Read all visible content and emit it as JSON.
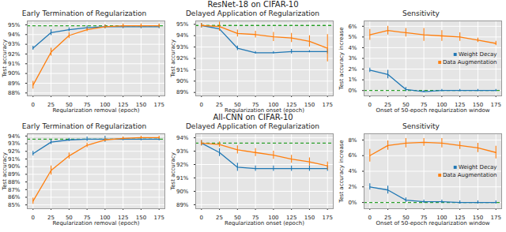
{
  "row_titles": [
    "ResNet-18 on CIFAR-10",
    "All-CNN on CIFAR-10"
  ],
  "chart_data": [
    {
      "type": "line",
      "title": "Early Termination of Regularization",
      "xlabel": "Regularization removal (epoch)",
      "ylabel": "Test accuracy",
      "x": [
        0,
        25,
        50,
        75,
        100,
        125,
        150,
        175
      ],
      "xlim": [
        -8,
        183
      ],
      "xticks": [
        0,
        25,
        50,
        75,
        100,
        125,
        150,
        175
      ],
      "ylim": [
        87.7,
        95.4
      ],
      "yticks": [
        {
          "value": 88,
          "label": "88%"
        },
        {
          "value": 89,
          "label": "89%"
        },
        {
          "value": 90,
          "label": "90%"
        },
        {
          "value": 91,
          "label": "91%"
        },
        {
          "value": 92,
          "label": "92%"
        },
        {
          "value": 93,
          "label": "93%"
        },
        {
          "value": 94,
          "label": "94%"
        },
        {
          "value": 95,
          "label": "95%"
        }
      ],
      "grid": true,
      "reference": {
        "value": 94.9,
        "color": "#2ca02c",
        "line_style": "dashed"
      },
      "series": [
        {
          "name": "Weight Decay",
          "color": "#1f77b4",
          "values": [
            92.6,
            94.2,
            94.5,
            94.7,
            94.8,
            94.8,
            94.8,
            94.8
          ],
          "errors": [
            0.2,
            0.3,
            0.2,
            0.2,
            0.2,
            0.2,
            0.2,
            0.2
          ]
        },
        {
          "name": "Data Augmentation",
          "color": "#ff7f0e",
          "values": [
            88.8,
            92.2,
            93.9,
            94.5,
            94.8,
            94.9,
            94.9,
            94.9
          ],
          "errors": [
            0.4,
            0.4,
            0.3,
            0.2,
            0.2,
            0.2,
            0.2,
            0.2
          ]
        }
      ]
    },
    {
      "type": "line",
      "title": "Delayed Application of Regularization",
      "xlabel": "Regularization onset (epoch)",
      "ylabel": "Test accuracy",
      "x": [
        0,
        25,
        50,
        75,
        100,
        125,
        150,
        175
      ],
      "xlim": [
        -8,
        183
      ],
      "xticks": [
        0,
        25,
        50,
        75,
        100,
        125,
        150,
        175
      ],
      "ylim": [
        88.7,
        95.3
      ],
      "yticks": [
        {
          "value": 89,
          "label": "89%"
        },
        {
          "value": 90,
          "label": "90%"
        },
        {
          "value": 91,
          "label": "91%"
        },
        {
          "value": 92,
          "label": "92%"
        },
        {
          "value": 93,
          "label": "93%"
        },
        {
          "value": 94,
          "label": "94%"
        },
        {
          "value": 95,
          "label": "95%"
        }
      ],
      "grid": true,
      "reference": {
        "value": 94.9,
        "color": "#2ca02c",
        "line_style": "dashed"
      },
      "series": [
        {
          "name": "Weight Decay",
          "color": "#1f77b4",
          "values": [
            94.9,
            94.6,
            92.9,
            92.5,
            92.5,
            92.6,
            92.6,
            92.6
          ],
          "errors": [
            0.2,
            0.2,
            0.2,
            0.1,
            0.1,
            0.2,
            0.1,
            0.2
          ]
        },
        {
          "name": "Data Augmentation",
          "color": "#ff7f0e",
          "values": [
            94.9,
            94.8,
            94.2,
            94.1,
            93.9,
            93.8,
            93.5,
            92.9
          ],
          "errors": [
            0.2,
            0.4,
            0.3,
            0.3,
            0.4,
            0.4,
            0.5,
            1.2
          ]
        }
      ]
    },
    {
      "type": "line",
      "title": "Sensitivity",
      "xlabel": "Onset of 50-epoch regularization window",
      "ylabel": "Test accuracy increase",
      "x": [
        0,
        25,
        50,
        75,
        100,
        125,
        150,
        175
      ],
      "xlim": [
        -8,
        183
      ],
      "xticks": [
        0,
        25,
        50,
        75,
        100,
        125,
        150,
        175
      ],
      "ylim": [
        -0.5,
        6.5
      ],
      "yticks": [
        {
          "value": 0,
          "label": "0%"
        },
        {
          "value": 1,
          "label": "1%"
        },
        {
          "value": 2,
          "label": "2%"
        },
        {
          "value": 3,
          "label": "3%"
        },
        {
          "value": 4,
          "label": "4%"
        },
        {
          "value": 5,
          "label": "5%"
        },
        {
          "value": 6,
          "label": "6%"
        }
      ],
      "grid": true,
      "legend": "right",
      "reference": {
        "value": 0,
        "color": "#2ca02c",
        "line_style": "dashed"
      },
      "series": [
        {
          "name": "Weight Decay",
          "color": "#1f77b4",
          "values": [
            1.9,
            1.5,
            0.1,
            -0.1,
            0.0,
            0.0,
            0.0,
            0.0
          ],
          "errors": [
            0.2,
            0.4,
            0.2,
            0.1,
            0.1,
            0.1,
            0.1,
            0.1
          ]
        },
        {
          "name": "Data Augmentation",
          "color": "#ff7f0e",
          "values": [
            5.2,
            5.6,
            5.4,
            5.2,
            5.1,
            5.0,
            4.7,
            4.4
          ],
          "errors": [
            0.5,
            0.4,
            0.4,
            0.6,
            0.5,
            0.4,
            0.2,
            0.2
          ]
        }
      ]
    },
    {
      "type": "line",
      "title": "Early Termination of Regularization",
      "xlabel": "Regularization removal (epoch)",
      "ylabel": "Test accuracy",
      "x": [
        0,
        25,
        50,
        75,
        100,
        125,
        150,
        175
      ],
      "xlim": [
        -8,
        183
      ],
      "xticks": [
        0,
        25,
        50,
        75,
        100,
        125,
        150,
        175
      ],
      "ylim": [
        84.5,
        94.3
      ],
      "yticks": [
        {
          "value": 85,
          "label": "85%"
        },
        {
          "value": 86,
          "label": "86%"
        },
        {
          "value": 87,
          "label": "87%"
        },
        {
          "value": 88,
          "label": "88%"
        },
        {
          "value": 89,
          "label": "89%"
        },
        {
          "value": 90,
          "label": "90%"
        },
        {
          "value": 91,
          "label": "91%"
        },
        {
          "value": 92,
          "label": "92%"
        },
        {
          "value": 93,
          "label": "93%"
        },
        {
          "value": 94,
          "label": "94%"
        }
      ],
      "grid": true,
      "reference": {
        "value": 93.6,
        "color": "#2ca02c",
        "line_style": "dashed"
      },
      "series": [
        {
          "name": "Weight Decay",
          "color": "#1f77b4",
          "values": [
            91.7,
            93.2,
            93.5,
            93.6,
            93.6,
            93.6,
            93.6,
            93.6
          ],
          "errors": [
            0.3,
            0.3,
            0.2,
            0.3,
            0.4,
            0.2,
            0.2,
            0.2
          ]
        },
        {
          "name": "Data Augmentation",
          "color": "#ff7f0e",
          "values": [
            85.5,
            89.5,
            91.4,
            92.8,
            93.5,
            93.7,
            93.8,
            93.8
          ],
          "errors": [
            0.4,
            0.6,
            0.4,
            0.3,
            0.2,
            0.2,
            0.2,
            0.2
          ]
        }
      ]
    },
    {
      "type": "line",
      "title": "Delayed Application of Regularization",
      "xlabel": "Regularization onset (epoch)",
      "ylabel": "Test accuracy",
      "x": [
        0,
        25,
        50,
        75,
        100,
        125,
        150,
        175
      ],
      "xlim": [
        -8,
        183
      ],
      "xticks": [
        0,
        25,
        50,
        75,
        100,
        125,
        150,
        175
      ],
      "ylim": [
        88.7,
        94.3
      ],
      "yticks": [
        {
          "value": 89,
          "label": "89%"
        },
        {
          "value": 90,
          "label": "90%"
        },
        {
          "value": 91,
          "label": "91%"
        },
        {
          "value": 92,
          "label": "92%"
        },
        {
          "value": 93,
          "label": "93%"
        },
        {
          "value": 94,
          "label": "94%"
        }
      ],
      "grid": true,
      "reference": {
        "value": 93.6,
        "color": "#2ca02c",
        "line_style": "dashed"
      },
      "series": [
        {
          "name": "Weight Decay",
          "color": "#1f77b4",
          "values": [
            93.6,
            92.9,
            91.8,
            91.7,
            91.7,
            91.7,
            91.7,
            91.7
          ],
          "errors": [
            0.2,
            0.3,
            0.3,
            0.2,
            0.2,
            0.2,
            0.2,
            0.2
          ]
        },
        {
          "name": "Data Augmentation",
          "color": "#ff7f0e",
          "values": [
            93.6,
            93.5,
            93.1,
            92.9,
            92.7,
            92.4,
            92.2,
            91.9
          ],
          "errors": [
            0.2,
            0.2,
            0.3,
            0.3,
            0.3,
            0.3,
            0.3,
            0.3
          ]
        }
      ]
    },
    {
      "type": "line",
      "title": "Sensitivity",
      "xlabel": "Onset of 50-epoch regularization window",
      "ylabel": "Test accuracy increase",
      "x": [
        0,
        25,
        50,
        75,
        100,
        125,
        150,
        175
      ],
      "xlim": [
        -8,
        183
      ],
      "xticks": [
        0,
        25,
        50,
        75,
        100,
        125,
        150,
        175
      ],
      "ylim": [
        -0.8,
        8.8
      ],
      "yticks": [
        {
          "value": 0,
          "label": "0%"
        },
        {
          "value": 2,
          "label": "2%"
        },
        {
          "value": 4,
          "label": "4%"
        },
        {
          "value": 6,
          "label": "6%"
        },
        {
          "value": 8,
          "label": "8%"
        }
      ],
      "grid": true,
      "legend": "right",
      "reference": {
        "value": 0,
        "color": "#2ca02c",
        "line_style": "dashed"
      },
      "series": [
        {
          "name": "Weight Decay",
          "color": "#1f77b4",
          "values": [
            2.0,
            1.6,
            0.3,
            0.1,
            0.1,
            0.0,
            0.0,
            0.0
          ],
          "errors": [
            0.4,
            0.5,
            0.3,
            0.2,
            0.2,
            0.2,
            0.2,
            0.2
          ]
        },
        {
          "name": "Data Augmentation",
          "color": "#ff7f0e",
          "values": [
            6.0,
            7.3,
            7.6,
            7.7,
            7.6,
            7.3,
            7.0,
            6.4
          ],
          "errors": [
            0.8,
            0.6,
            0.6,
            0.5,
            0.6,
            0.5,
            0.6,
            0.8
          ]
        }
      ]
    }
  ]
}
